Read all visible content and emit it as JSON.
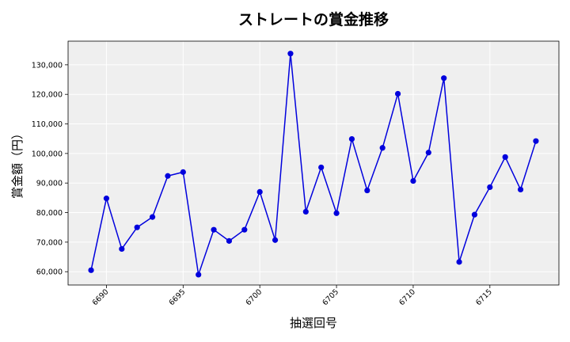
{
  "chart_data": {
    "type": "line",
    "title": "ストレートの賞金推移",
    "xlabel": "抽選回号",
    "ylabel": "賞金額（円）",
    "x": [
      6689,
      6690,
      6691,
      6692,
      6693,
      6694,
      6695,
      6696,
      6697,
      6698,
      6699,
      6700,
      6701,
      6702,
      6703,
      6704,
      6705,
      6706,
      6707,
      6708,
      6709,
      6710,
      6711,
      6712,
      6713,
      6714,
      6715,
      6716,
      6717,
      6718
    ],
    "series": [
      {
        "values": [
          60500,
          84800,
          67700,
          75000,
          78500,
          92400,
          93700,
          59000,
          74200,
          70400,
          74200,
          87000,
          70700,
          133800,
          80300,
          95300,
          79800,
          104900,
          87500,
          101900,
          120200,
          90700,
          100300,
          125500,
          63300,
          79300,
          88600,
          98800,
          87800,
          104200
        ],
        "color": "#0000dd"
      }
    ],
    "xticks": [
      6690,
      6695,
      6700,
      6705,
      6710,
      6715
    ],
    "xtick_labels": [
      "6690",
      "6695",
      "6700",
      "6705",
      "6710",
      "6715"
    ],
    "yticks": [
      60000,
      70000,
      80000,
      90000,
      100000,
      110000,
      120000,
      130000
    ],
    "ytick_labels": [
      "60,000",
      "70,000",
      "80,000",
      "90,000",
      "100,000",
      "110,000",
      "120,000",
      "130,000"
    ],
    "xlim": [
      6687.5,
      6719.5
    ],
    "ylim": [
      55500,
      138000
    ],
    "grid": true,
    "background_color": "#efefef",
    "grid_color": "#ffffff",
    "line_color": "#0000dd"
  }
}
